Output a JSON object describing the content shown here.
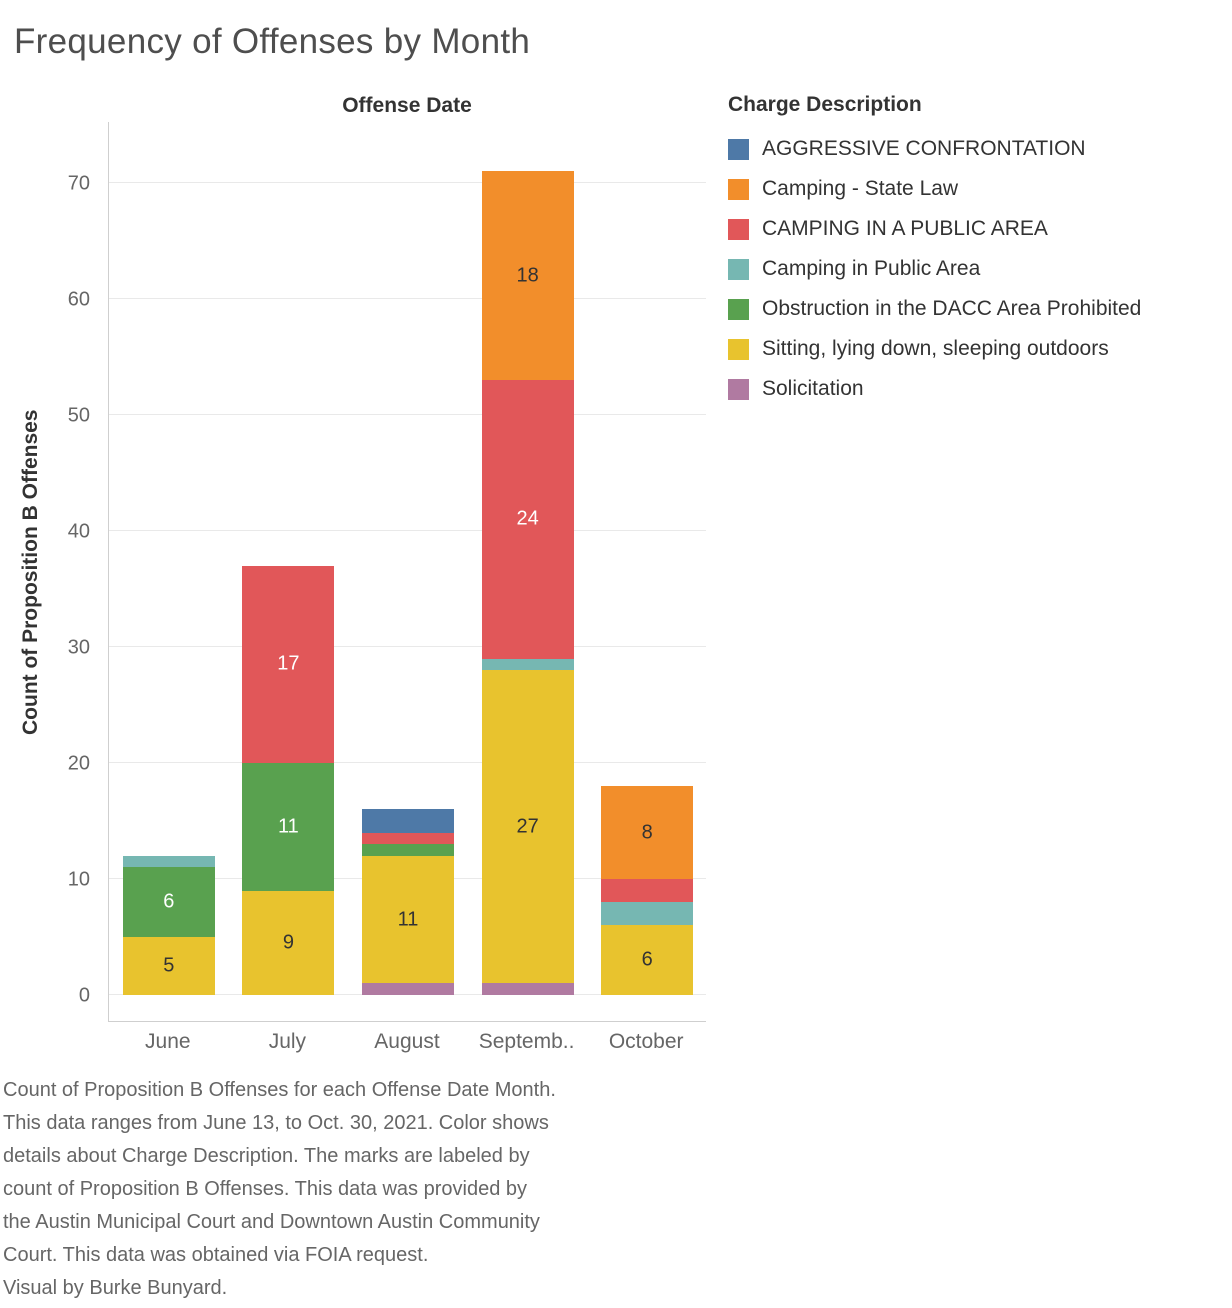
{
  "title": "Frequency of Offenses by Month",
  "caption": "Count of Proposition B Offenses for each Offense Date Month.\nThis data ranges from June 13, to Oct. 30, 2021. Color shows\ndetails about Charge Description.  The marks are labeled by\ncount of Proposition B Offenses. This data was provided by\nthe Austin Municipal Court and Downtown Austin Community\nCourt. This data was obtained via FOIA request.\nVisual by Burke Bunyard.",
  "chart_data": {
    "type": "bar",
    "stacked": true,
    "title": "Frequency of Offenses by Month",
    "column_header": "Offense Date",
    "xlabel": "Offense Date",
    "ylabel": "Count of Proposition B Offenses",
    "legend_title": "Charge Description",
    "legend_position": "right",
    "grid": true,
    "categories": [
      "June",
      "July",
      "August",
      "Septemb..",
      "October"
    ],
    "yticks": [
      0,
      10,
      20,
      30,
      40,
      50,
      60,
      70
    ],
    "ylim": [
      0,
      75
    ],
    "label_min_value": 5,
    "series": [
      {
        "name": "Solicitation",
        "color": "#b07aa1",
        "label_color": "#ffffff",
        "values": [
          0,
          0,
          1,
          1,
          0
        ]
      },
      {
        "name": "Sitting, lying down, sleeping outdoors",
        "color": "#e8c32e",
        "label_color": "#333333",
        "values": [
          5,
          9,
          11,
          27,
          6
        ]
      },
      {
        "name": "Obstruction in the DACC Area Prohibited",
        "color": "#59a14f",
        "label_color": "#ffffff",
        "values": [
          6,
          11,
          1,
          0,
          0
        ]
      },
      {
        "name": "Camping in Public Area",
        "color": "#76b7b2",
        "label_color": "#333333",
        "values": [
          1,
          0,
          0,
          1,
          2
        ]
      },
      {
        "name": "CAMPING IN A PUBLIC AREA",
        "color": "#e15759",
        "label_color": "#ffffff",
        "values": [
          0,
          17,
          1,
          24,
          2
        ]
      },
      {
        "name": "Camping - State Law",
        "color": "#f28e2b",
        "label_color": "#333333",
        "values": [
          0,
          0,
          0,
          18,
          8
        ]
      },
      {
        "name": "AGGRESSIVE CONFRONTATION",
        "color": "#4e79a7",
        "label_color": "#ffffff",
        "values": [
          0,
          0,
          2,
          0,
          0
        ]
      }
    ],
    "totals": {
      "June": 12,
      "July": 37,
      "August": 16,
      "Septemb..": 71,
      "October": 18
    },
    "legend": [
      {
        "name": "AGGRESSIVE CONFRONTATION",
        "color": "#4e79a7"
      },
      {
        "name": "Camping - State Law",
        "color": "#f28e2b"
      },
      {
        "name": "CAMPING IN A PUBLIC AREA",
        "color": "#e15759"
      },
      {
        "name": "Camping in Public Area",
        "color": "#76b7b2"
      },
      {
        "name": "Obstruction in the DACC Area Prohibited",
        "color": "#59a14f"
      },
      {
        "name": "Sitting, lying down, sleeping outdoors",
        "color": "#e8c32e"
      },
      {
        "name": "Solicitation",
        "color": "#b07aa1"
      }
    ]
  }
}
